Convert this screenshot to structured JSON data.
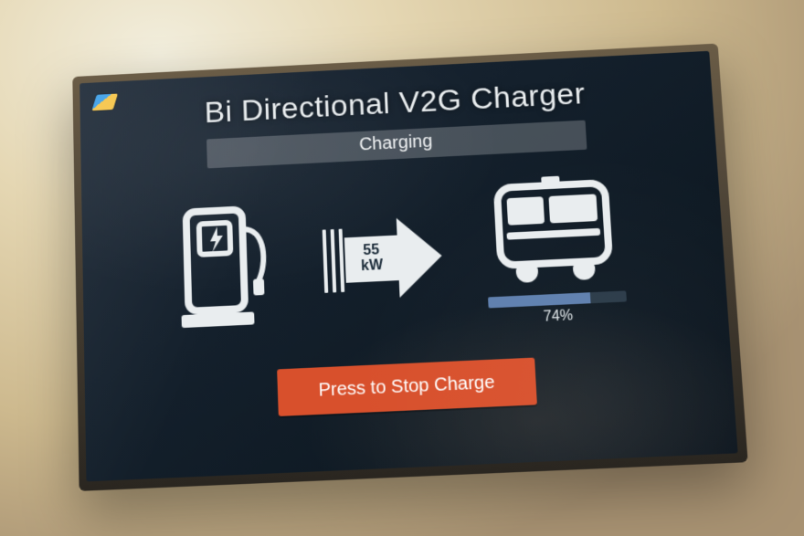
{
  "title": "Bi Directional V2G Charger",
  "status": "Charging",
  "power": {
    "value": "55",
    "unit": "kW"
  },
  "battery": {
    "percent": 74,
    "label": "74%"
  },
  "button": {
    "stop_label": "Press to Stop Charge"
  },
  "colors": {
    "screen_bg_top": "#1b2735",
    "screen_bg_bottom": "#0b141d",
    "fg": "#e9edef",
    "status_bg": "rgba(255,255,255,0.22)",
    "button_bg": "#d8502c",
    "button_fg": "#ffffff",
    "progress_bg": "#2a3a48",
    "progress_fill": "#5e7fae"
  },
  "icons": {
    "logo": "brand-logo",
    "charger": "ev-charger-icon",
    "arrow": "power-flow-arrow-icon",
    "bus": "bus-icon"
  }
}
